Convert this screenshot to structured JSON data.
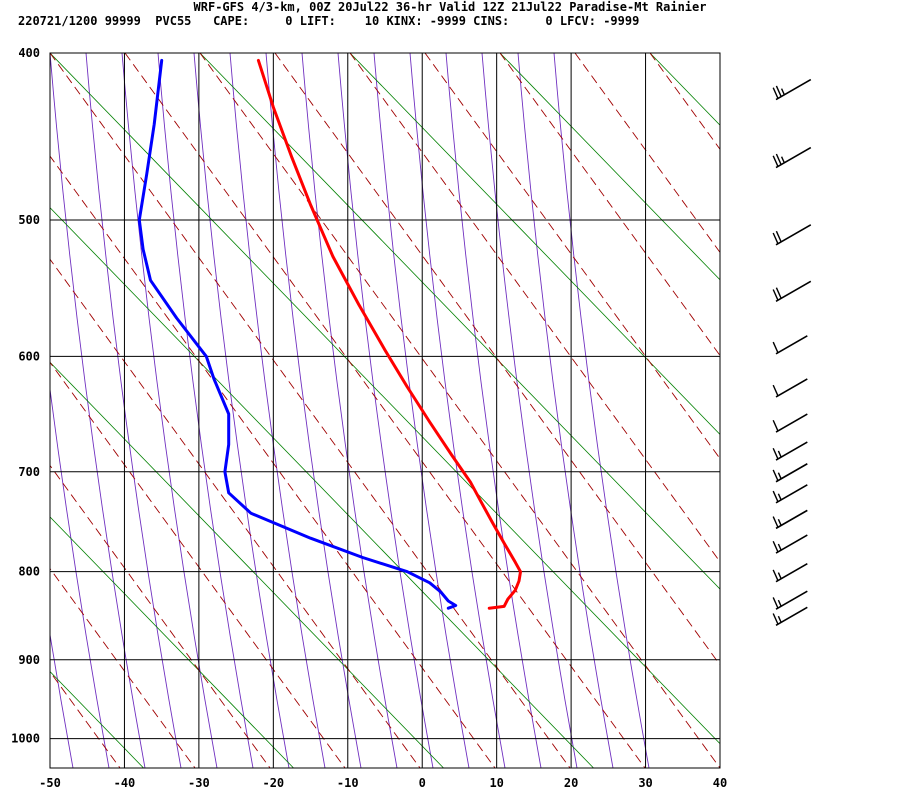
{
  "header": {
    "line1": "WRF-GFS 4/3-km, 00Z 20Jul22 36-hr Valid 12Z 21Jul22 Paradise-Mt Rainier",
    "line2": "220721/1200 99999  PVC55   CAPE:     0 LIFT:    10 KINX: -9999 CINS:     0 LFCV: -9999"
  },
  "colors": {
    "temperature": "#ff0000",
    "dewpoint": "#0000ff",
    "dry_adiabat": "#a00000",
    "moist_adiabat": "#7030c0",
    "isotherm_diag": "#008000",
    "grid": "#000000",
    "wind_barb": "#000000"
  },
  "chart_data": {
    "type": "line",
    "title": "",
    "xlabel": "",
    "ylabel": "",
    "x_ticks": [
      -50,
      -40,
      -30,
      -20,
      -10,
      0,
      10,
      20,
      30,
      40
    ],
    "y_ticks": [
      400,
      500,
      600,
      700,
      800,
      900,
      1000
    ],
    "xlim": [
      -50,
      40
    ],
    "ylim": [
      1040,
      400
    ],
    "y_scale": "log",
    "grid": true,
    "series": [
      {
        "role": "temperature",
        "points": [
          [
            -22,
            404
          ],
          [
            -20,
            430
          ],
          [
            -17.5,
            460
          ],
          [
            -15,
            490
          ],
          [
            -12,
            525
          ],
          [
            -8.5,
            560
          ],
          [
            -5,
            595
          ],
          [
            -2,
            625
          ],
          [
            1,
            655
          ],
          [
            4,
            685
          ],
          [
            6.5,
            710
          ],
          [
            8,
            730
          ],
          [
            9.5,
            750
          ],
          [
            11,
            770
          ],
          [
            12.5,
            790
          ],
          [
            13.2,
            800
          ],
          [
            13,
            810
          ],
          [
            12.5,
            820
          ],
          [
            11.5,
            830
          ],
          [
            11,
            838
          ],
          [
            9,
            840
          ]
        ]
      },
      {
        "role": "dewpoint",
        "points": [
          [
            -35,
            404
          ],
          [
            -36,
            440
          ],
          [
            -37,
            470
          ],
          [
            -38,
            500
          ],
          [
            -37.5,
            520
          ],
          [
            -36.5,
            542
          ],
          [
            -33,
            570
          ],
          [
            -29,
            600
          ],
          [
            -28,
            618
          ],
          [
            -26,
            648
          ],
          [
            -26,
            675
          ],
          [
            -26.5,
            700
          ],
          [
            -26,
            720
          ],
          [
            -23,
            740
          ],
          [
            -15,
            765
          ],
          [
            -8,
            785
          ],
          [
            -2,
            800
          ],
          [
            1,
            812
          ],
          [
            2.5,
            822
          ],
          [
            3.5,
            832
          ],
          [
            4.5,
            837
          ],
          [
            3.5,
            840
          ]
        ]
      }
    ],
    "wind_barbs": [
      {
        "p": 420,
        "speed_kt": 25
      },
      {
        "p": 460,
        "speed_kt": 25
      },
      {
        "p": 510,
        "speed_kt": 20
      },
      {
        "p": 550,
        "speed_kt": 20
      },
      {
        "p": 590,
        "speed_kt": 10
      },
      {
        "p": 625,
        "speed_kt": 10
      },
      {
        "p": 655,
        "speed_kt": 10
      },
      {
        "p": 680,
        "speed_kt": 15
      },
      {
        "p": 700,
        "speed_kt": 15
      },
      {
        "p": 720,
        "speed_kt": 15
      },
      {
        "p": 745,
        "speed_kt": 15
      },
      {
        "p": 770,
        "speed_kt": 15
      },
      {
        "p": 800,
        "speed_kt": 15
      },
      {
        "p": 830,
        "speed_kt": 15
      },
      {
        "p": 848,
        "speed_kt": 15
      }
    ]
  }
}
